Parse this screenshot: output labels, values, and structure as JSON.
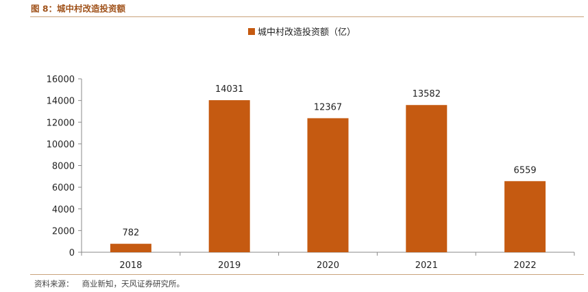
{
  "header": {
    "figure_title": "图 8：城中村改造投资额"
  },
  "footer": {
    "source_label": "资料来源：",
    "source_text": "商业新知，天风证券研究所。"
  },
  "chart_data": {
    "type": "bar",
    "title": "",
    "xlabel": "",
    "ylabel": "",
    "categories": [
      "2018",
      "2019",
      "2020",
      "2021",
      "2022"
    ],
    "series": [
      {
        "name": "城中村改造投资额（亿）",
        "values": [
          782,
          14031,
          12367,
          13582,
          6559
        ],
        "color": "#c55a11"
      }
    ],
    "ylim": [
      0,
      16000
    ],
    "yticks": [
      0,
      2000,
      4000,
      6000,
      8000,
      10000,
      12000,
      14000,
      16000
    ],
    "data_labels": true,
    "grid": false,
    "legend_position": "top-center"
  }
}
